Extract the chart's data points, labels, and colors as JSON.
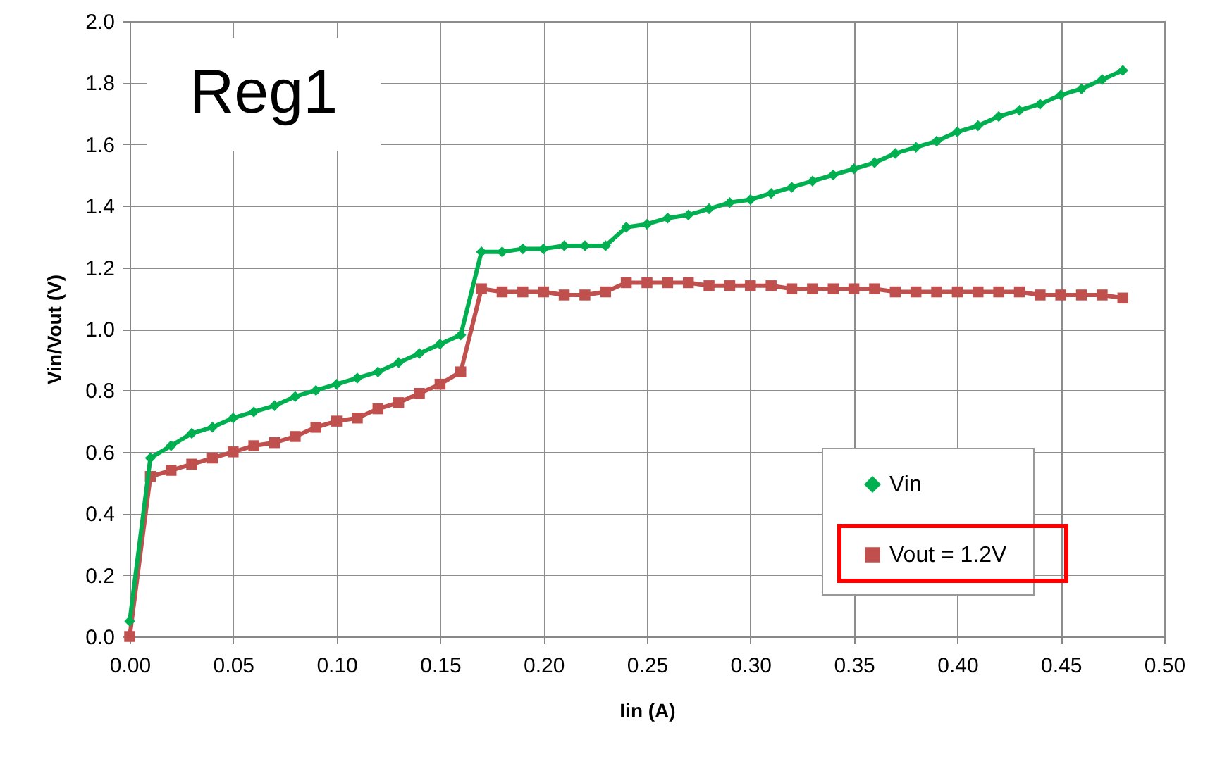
{
  "chart_data": {
    "type": "line",
    "xlabel": "Iin (A)",
    "ylabel": "Vin/Vout (V)",
    "annotations": [
      "Reg1"
    ],
    "x": [
      0,
      0.01,
      0.02,
      0.03,
      0.04,
      0.05,
      0.06,
      0.07,
      0.08,
      0.09,
      0.1,
      0.11,
      0.12,
      0.13,
      0.14,
      0.15,
      0.16,
      0.17,
      0.18,
      0.19,
      0.2,
      0.21,
      0.22,
      0.23,
      0.24,
      0.25,
      0.26,
      0.27,
      0.28,
      0.29,
      0.3,
      0.31,
      0.32,
      0.33,
      0.34,
      0.35,
      0.36,
      0.37,
      0.38,
      0.39,
      0.4,
      0.41,
      0.42,
      0.43,
      0.44,
      0.45,
      0.46,
      0.47,
      0.48
    ],
    "series": [
      {
        "name": "Vin",
        "color": "#00b050",
        "marker": "diamond",
        "values": [
          0.05,
          0.58,
          0.62,
          0.66,
          0.68,
          0.71,
          0.73,
          0.75,
          0.78,
          0.8,
          0.82,
          0.84,
          0.86,
          0.89,
          0.92,
          0.95,
          0.98,
          1.25,
          1.25,
          1.26,
          1.26,
          1.27,
          1.27,
          1.27,
          1.33,
          1.34,
          1.36,
          1.37,
          1.39,
          1.41,
          1.42,
          1.44,
          1.46,
          1.48,
          1.5,
          1.52,
          1.54,
          1.57,
          1.59,
          1.61,
          1.64,
          1.66,
          1.69,
          1.71,
          1.73,
          1.76,
          1.78,
          1.81,
          1.84
        ]
      },
      {
        "name": "Vout = 1.2V",
        "color": "#c0504d",
        "marker": "square",
        "values": [
          0,
          0.52,
          0.54,
          0.56,
          0.58,
          0.6,
          0.62,
          0.63,
          0.65,
          0.68,
          0.7,
          0.71,
          0.74,
          0.76,
          0.79,
          0.82,
          0.86,
          1.13,
          1.12,
          1.12,
          1.12,
          1.11,
          1.11,
          1.12,
          1.15,
          1.15,
          1.15,
          1.15,
          1.14,
          1.14,
          1.14,
          1.14,
          1.13,
          1.13,
          1.13,
          1.13,
          1.13,
          1.12,
          1.12,
          1.12,
          1.12,
          1.12,
          1.12,
          1.12,
          1.11,
          1.11,
          1.11,
          1.11,
          1.1
        ]
      }
    ],
    "xlim": [
      0,
      0.5
    ],
    "xticks": [
      {
        "value": 0,
        "label": "0.00"
      },
      {
        "value": 0.05,
        "label": "0.05"
      },
      {
        "value": 0.1,
        "label": "0.10"
      },
      {
        "value": 0.15,
        "label": "0.15"
      },
      {
        "value": 0.2,
        "label": "0.20"
      },
      {
        "value": 0.25,
        "label": "0.25"
      },
      {
        "value": 0.3,
        "label": "0.30"
      },
      {
        "value": 0.35,
        "label": "0.35"
      },
      {
        "value": 0.4,
        "label": "0.40"
      },
      {
        "value": 0.45,
        "label": "0.45"
      },
      {
        "value": 0.5,
        "label": "0.50"
      }
    ],
    "ylim": [
      0,
      2
    ],
    "yticks": [
      {
        "value": 0,
        "label": "0.0"
      },
      {
        "value": 0.2,
        "label": "0.2"
      },
      {
        "value": 0.4,
        "label": "0.4"
      },
      {
        "value": 0.6,
        "label": "0.6"
      },
      {
        "value": 0.8,
        "label": "0.8"
      },
      {
        "value": 1,
        "label": "1.0"
      },
      {
        "value": 1.2,
        "label": "1.2"
      },
      {
        "value": 1.4,
        "label": "1.4"
      },
      {
        "value": 1.6,
        "label": "1.6"
      },
      {
        "value": 1.8,
        "label": "1.8"
      },
      {
        "value": 2,
        "label": "2.0"
      }
    ],
    "grid": true,
    "legend": "bottom right",
    "line_style": "solid"
  }
}
